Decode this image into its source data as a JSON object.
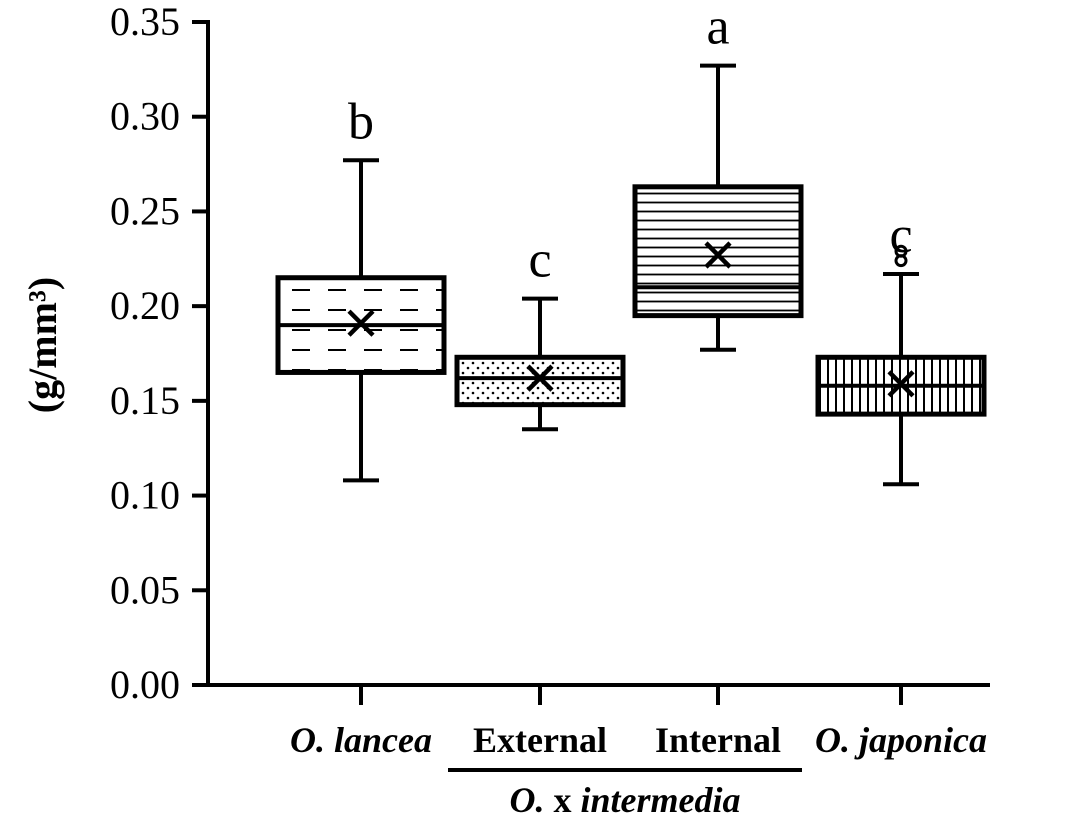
{
  "chart_data": {
    "type": "box",
    "ylabel": "(g/mm³)",
    "ylim": [
      0,
      0.35
    ],
    "yticks": [
      "0.00",
      "0.05",
      "0.10",
      "0.15",
      "0.20",
      "0.25",
      "0.30",
      "0.35"
    ],
    "group_label": {
      "prefix": "O.",
      "middle": " x ",
      "suffix": "intermedia"
    },
    "categories": [
      {
        "label": "O. lancea",
        "style": "italic",
        "letter": "b",
        "pattern": "dashed",
        "whisker_low": 0.108,
        "q1": 0.165,
        "median": 0.19,
        "q3": 0.215,
        "whisker_high": 0.277,
        "mean": 0.191,
        "outliers": []
      },
      {
        "label": "External",
        "style": "bold",
        "letter": "c",
        "pattern": "dotted",
        "whisker_low": 0.135,
        "q1": 0.148,
        "median": 0.162,
        "q3": 0.173,
        "whisker_high": 0.204,
        "mean": 0.162,
        "outliers": []
      },
      {
        "label": "Internal",
        "style": "bold",
        "letter": "a",
        "pattern": "horizontal",
        "whisker_low": 0.177,
        "q1": 0.195,
        "median": 0.21,
        "q3": 0.263,
        "whisker_high": 0.327,
        "mean": 0.227,
        "outliers": []
      },
      {
        "label": "O. japonica",
        "style": "italic",
        "letter": "c",
        "pattern": "vertical",
        "whisker_low": 0.106,
        "q1": 0.143,
        "median": 0.158,
        "q3": 0.173,
        "whisker_high": 0.217,
        "mean": 0.159,
        "outliers": [
          0.224,
          0.229
        ]
      }
    ]
  }
}
